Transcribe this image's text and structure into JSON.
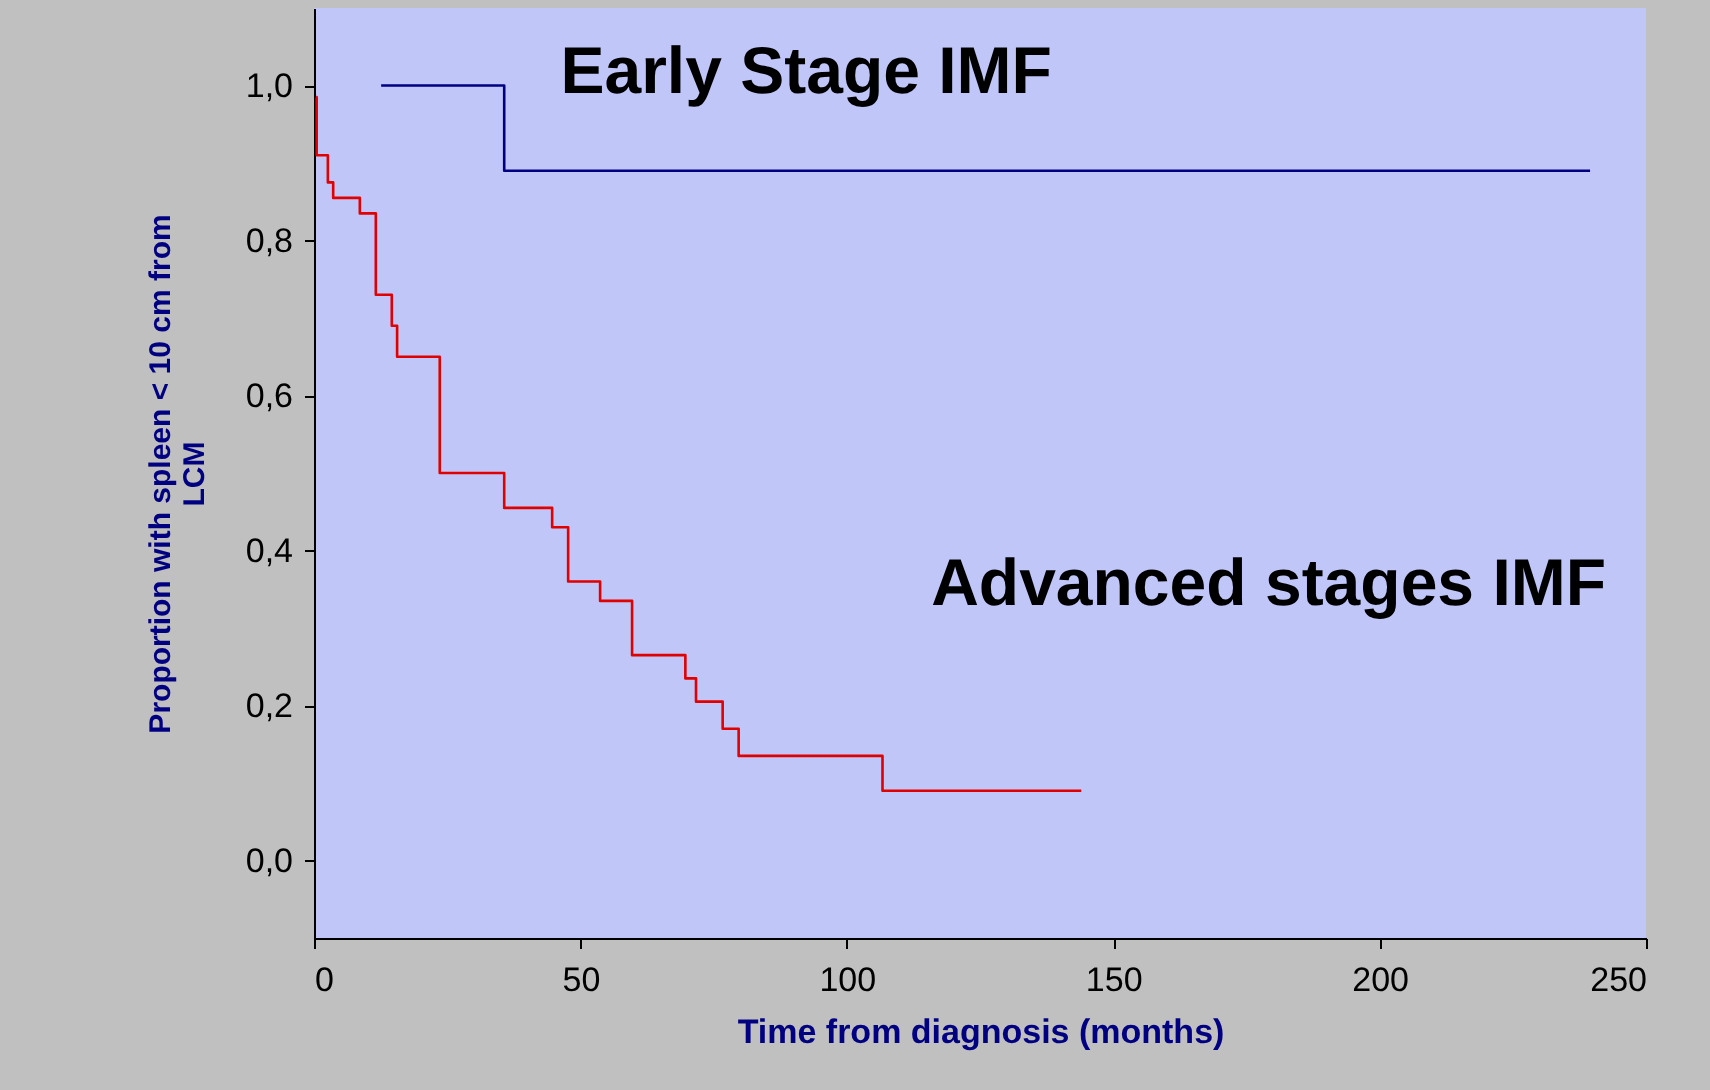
{
  "chart_data": {
    "type": "step",
    "xlabel": "Time from diagnosis (months)",
    "ylabel": "Proportion with spleen < 10 cm from LCM",
    "xlim": [
      0,
      250
    ],
    "xticks": [
      0,
      50,
      100,
      150,
      200,
      250
    ],
    "ylim": [
      -0.1,
      1.1
    ],
    "yticks": [
      {
        "value": 0,
        "label": "0,0"
      },
      {
        "value": 0.2,
        "label": "0,2"
      },
      {
        "value": 0.4,
        "label": "0,4"
      },
      {
        "value": 0.6,
        "label": "0,6"
      },
      {
        "value": 0.8,
        "label": "0,8"
      },
      {
        "value": 1.0,
        "label": "1,0"
      }
    ],
    "line_style": "solid",
    "marker": "none",
    "series": [
      {
        "name": "Early Stage IMF",
        "color": "#000080",
        "x": [
          12.6,
          35.7,
          239.5
        ],
        "values": [
          1.0,
          0.89,
          0.89
        ]
      },
      {
        "name": "Advanced stages IMF",
        "color": "#e00000",
        "x": [
          0.4,
          0.5,
          2.6,
          3.6,
          8.6,
          11.6,
          14.6,
          15.6,
          23.6,
          35.7,
          44.7,
          47.7,
          53.7,
          59.7,
          69.7,
          71.7,
          76.7,
          79.7,
          106.7,
          144
        ],
        "values": [
          0.985,
          0.91,
          0.875,
          0.855,
          0.835,
          0.73,
          0.69,
          0.65,
          0.5,
          0.455,
          0.43,
          0.36,
          0.335,
          0.265,
          0.235,
          0.205,
          0.17,
          0.135,
          0.09,
          0.09
        ]
      }
    ]
  }
}
